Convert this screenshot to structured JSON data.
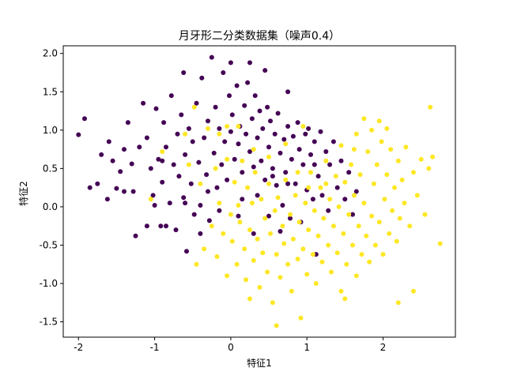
{
  "chart_data": {
    "type": "scatter",
    "title": "月牙形二分类数据集（噪声0.4）",
    "xlabel": "特征1",
    "ylabel": "特征2",
    "xlim": [
      -2.2,
      2.95
    ],
    "ylim": [
      -1.7,
      2.1
    ],
    "xticks": [
      -2,
      -1,
      0,
      1,
      2
    ],
    "yticks": [
      -1.5,
      -1.0,
      -0.5,
      0.0,
      0.5,
      1.0,
      1.5,
      2.0
    ],
    "xtick_labels": [
      "-2",
      "-1",
      "0",
      "1",
      "2"
    ],
    "ytick_labels": [
      "-1.5",
      "-1.0",
      "-0.5",
      "0.0",
      "0.5",
      "1.0",
      "1.5",
      "2.0"
    ],
    "grid": false,
    "legend": "none",
    "series": [
      {
        "class": 0,
        "color": "#440154",
        "points": [
          [
            -2.0,
            0.94
          ],
          [
            -1.92,
            1.15
          ],
          [
            -1.85,
            0.25
          ],
          [
            -1.75,
            0.3
          ],
          [
            -1.6,
            0.85
          ],
          [
            -1.55,
            0.6
          ],
          [
            -1.5,
            0.24
          ],
          [
            -1.45,
            0.46
          ],
          [
            -1.4,
            0.75
          ],
          [
            -1.35,
            1.1
          ],
          [
            -1.3,
            0.56
          ],
          [
            -1.28,
            0.2
          ],
          [
            -1.25,
            -0.38
          ],
          [
            -1.2,
            0.78
          ],
          [
            -1.15,
            1.35
          ],
          [
            -1.1,
            0.9
          ],
          [
            -1.05,
            0.5
          ],
          [
            -1.02,
            0.15
          ],
          [
            -0.98,
            1.28
          ],
          [
            -0.95,
            0.62
          ],
          [
            -0.92,
            -0.25
          ],
          [
            -0.9,
            0.32
          ],
          [
            -0.88,
            1.1
          ],
          [
            -0.85,
            0.78
          ],
          [
            -0.8,
            0.05
          ],
          [
            -0.78,
            1.45
          ],
          [
            -0.75,
            0.55
          ],
          [
            -0.72,
            -0.3
          ],
          [
            -0.7,
            0.95
          ],
          [
            -0.68,
            0.4
          ],
          [
            -0.65,
            1.2
          ],
          [
            -0.62,
            0.12
          ],
          [
            -0.6,
            0.68
          ],
          [
            -0.58,
            -0.58
          ],
          [
            -0.55,
            1.02
          ],
          [
            -0.52,
            0.3
          ],
          [
            -0.5,
            0.85
          ],
          [
            -0.48,
            -0.1
          ],
          [
            -0.45,
            1.35
          ],
          [
            -0.42,
            0.58
          ],
          [
            -0.4,
            0.02
          ],
          [
            -0.38,
            1.68
          ],
          [
            -0.35,
            0.9
          ],
          [
            -0.32,
            0.42
          ],
          [
            -0.3,
            1.12
          ],
          [
            -0.28,
            -0.18
          ],
          [
            -0.25,
            1.95
          ],
          [
            -0.22,
            0.7
          ],
          [
            -0.2,
            1.3
          ],
          [
            -0.18,
            0.25
          ],
          [
            -0.15,
            1.02
          ],
          [
            -0.12,
            0.55
          ],
          [
            -0.1,
            1.75
          ],
          [
            -0.08,
            0.85
          ],
          [
            -0.05,
            0.35
          ],
          [
            -0.02,
            1.45
          ],
          [
            0.0,
            0.98
          ],
          [
            0.02,
            1.2
          ],
          [
            0.05,
            0.62
          ],
          [
            0.08,
            1.58
          ],
          [
            0.1,
            0.82
          ],
          [
            0.12,
            1.05
          ],
          [
            0.15,
            0.45
          ],
          [
            0.18,
            1.32
          ],
          [
            0.2,
            0.95
          ],
          [
            0.22,
            1.62
          ],
          [
            0.25,
            0.72
          ],
          [
            0.28,
            1.15
          ],
          [
            0.3,
            0.52
          ],
          [
            0.32,
            1.45
          ],
          [
            0.35,
            0.9
          ],
          [
            0.38,
            1.25
          ],
          [
            0.4,
            0.6
          ],
          [
            0.42,
            1.02
          ],
          [
            0.45,
            0.35
          ],
          [
            0.48,
            1.3
          ],
          [
            0.5,
            0.78
          ],
          [
            0.52,
            1.12
          ],
          [
            0.55,
            0.5
          ],
          [
            0.58,
            0.95
          ],
          [
            0.6,
            0.28
          ],
          [
            0.62,
            1.22
          ],
          [
            0.65,
            0.7
          ],
          [
            0.68,
            0.02
          ],
          [
            0.7,
            0.88
          ],
          [
            0.72,
            0.45
          ],
          [
            0.75,
            1.05
          ],
          [
            0.78,
            -0.15
          ],
          [
            0.8,
            0.62
          ],
          [
            0.82,
            0.92
          ],
          [
            0.85,
            0.3
          ],
          [
            0.88,
            1.1
          ],
          [
            0.9,
            0.75
          ],
          [
            0.92,
            -0.2
          ],
          [
            0.95,
            0.55
          ],
          [
            0.98,
            0.95
          ],
          [
            1.0,
            0.22
          ],
          [
            1.02,
            1.02
          ],
          [
            1.05,
            0.68
          ],
          [
            1.08,
            0.1
          ],
          [
            1.1,
            0.85
          ],
          [
            1.12,
            -0.62
          ],
          [
            1.15,
            0.4
          ],
          [
            1.18,
            0.98
          ],
          [
            1.2,
            0.15
          ],
          [
            1.25,
            0.72
          ],
          [
            1.28,
            -0.05
          ],
          [
            1.3,
            0.55
          ],
          [
            1.35,
            0.85
          ],
          [
            1.4,
            0.25
          ],
          [
            1.45,
            0.6
          ],
          [
            1.5,
            0.1
          ],
          [
            1.55,
            0.45
          ],
          [
            1.6,
            -0.1
          ],
          [
            1.65,
            0.2
          ],
          [
            -1.0,
            0.02
          ],
          [
            -0.85,
            -0.25
          ],
          [
            -0.6,
            0.05
          ],
          [
            -0.4,
            -0.35
          ],
          [
            0.3,
            -0.35
          ],
          [
            0.5,
            -0.12
          ],
          [
            0.35,
            0.15
          ],
          [
            0.55,
            0.4
          ],
          [
            0.15,
            0.1
          ],
          [
            0.65,
            -0.32
          ],
          [
            -1.7,
            0.68
          ],
          [
            -1.4,
            0.2
          ],
          [
            -1.62,
            0.1
          ],
          [
            -1.1,
            -0.25
          ],
          [
            0.0,
            1.88
          ],
          [
            -0.62,
            1.75
          ],
          [
            0.45,
            1.78
          ],
          [
            0.25,
            1.88
          ],
          [
            0.75,
            1.5
          ],
          [
            1.1,
            0.55
          ],
          [
            -0.3,
            0.2
          ],
          [
            -0.15,
            -0.05
          ],
          [
            0.1,
            -0.12
          ],
          [
            0.75,
            0.3
          ],
          [
            -0.9,
            0.6
          ]
        ]
      },
      {
        "class": 1,
        "color": "#fde725",
        "points": [
          [
            -1.05,
            0.1
          ],
          [
            -0.9,
            0.72
          ],
          [
            -0.55,
            0.55
          ],
          [
            -0.45,
            -0.75
          ],
          [
            -0.4,
            0.3
          ],
          [
            -0.3,
            1.02
          ],
          [
            -0.25,
            -0.25
          ],
          [
            -0.2,
            0.5
          ],
          [
            -0.18,
            -0.65
          ],
          [
            -0.15,
            0.05
          ],
          [
            -0.1,
            -0.35
          ],
          [
            -0.05,
            0.62
          ],
          [
            0.0,
            -0.1
          ],
          [
            0.02,
            -0.45
          ],
          [
            0.05,
            0.32
          ],
          [
            0.08,
            -0.75
          ],
          [
            0.1,
            0.02
          ],
          [
            0.12,
            -0.2
          ],
          [
            0.15,
            0.6
          ],
          [
            0.18,
            -0.55
          ],
          [
            0.2,
            -0.95
          ],
          [
            0.22,
            0.25
          ],
          [
            0.25,
            -0.3
          ],
          [
            0.28,
            0.05
          ],
          [
            0.3,
            -0.7
          ],
          [
            0.32,
            0.45
          ],
          [
            0.35,
            -0.42
          ],
          [
            0.38,
            -1.05
          ],
          [
            0.4,
            0.1
          ],
          [
            0.42,
            -0.6
          ],
          [
            0.45,
            -0.15
          ],
          [
            0.48,
            -0.85
          ],
          [
            0.5,
            0.3
          ],
          [
            0.52,
            -0.35
          ],
          [
            0.55,
            -1.25
          ],
          [
            0.58,
            -0.05
          ],
          [
            0.6,
            -0.62
          ],
          [
            0.62,
            0.12
          ],
          [
            0.65,
            -0.92
          ],
          [
            0.68,
            -0.25
          ],
          [
            0.7,
            -0.48
          ],
          [
            0.72,
            0.35
          ],
          [
            0.75,
            -0.75
          ],
          [
            0.78,
            -0.1
          ],
          [
            0.8,
            -1.1
          ],
          [
            0.82,
            -0.42
          ],
          [
            0.85,
            0.15
          ],
          [
            0.88,
            -0.68
          ],
          [
            0.9,
            -0.2
          ],
          [
            0.92,
            -1.45
          ],
          [
            0.95,
            -0.55
          ],
          [
            0.98,
            0.05
          ],
          [
            1.0,
            -0.88
          ],
          [
            1.02,
            -0.3
          ],
          [
            1.05,
            0.45
          ],
          [
            1.08,
            -0.62
          ],
          [
            1.1,
            -0.05
          ],
          [
            1.12,
            -1.0
          ],
          [
            1.15,
            -0.38
          ],
          [
            1.18,
            0.25
          ],
          [
            1.2,
            -0.72
          ],
          [
            1.22,
            -0.15
          ],
          [
            1.25,
            0.6
          ],
          [
            1.28,
            -0.5
          ],
          [
            1.3,
            0.1
          ],
          [
            1.32,
            -0.85
          ],
          [
            1.35,
            -0.25
          ],
          [
            1.38,
            0.4
          ],
          [
            1.4,
            -0.6
          ],
          [
            1.42,
            0.0
          ],
          [
            1.45,
            -1.1
          ],
          [
            1.48,
            -0.35
          ],
          [
            1.5,
            0.32
          ],
          [
            1.52,
            -0.75
          ],
          [
            1.55,
            -0.1
          ],
          [
            1.58,
            0.55
          ],
          [
            1.6,
            -0.5
          ],
          [
            1.62,
            0.15
          ],
          [
            1.65,
            -0.9
          ],
          [
            1.68,
            -0.25
          ],
          [
            1.7,
            0.42
          ],
          [
            1.72,
            -0.62
          ],
          [
            1.75,
            0.05
          ],
          [
            1.78,
            -0.38
          ],
          [
            1.8,
            0.72
          ],
          [
            1.82,
            -0.72
          ],
          [
            1.85,
            -0.12
          ],
          [
            1.88,
            0.3
          ],
          [
            1.9,
            -0.5
          ],
          [
            1.92,
            0.55
          ],
          [
            1.95,
            -0.2
          ],
          [
            1.98,
            0.85
          ],
          [
            2.0,
            -0.62
          ],
          [
            2.02,
            0.1
          ],
          [
            2.05,
            0.42
          ],
          [
            2.08,
            -0.35
          ],
          [
            2.1,
            0.75
          ],
          [
            2.12,
            -0.05
          ],
          [
            2.15,
            0.25
          ],
          [
            2.18,
            -0.45
          ],
          [
            2.2,
            0.6
          ],
          [
            2.22,
            -0.15
          ],
          [
            2.25,
            0.35
          ],
          [
            2.28,
            0.05
          ],
          [
            2.3,
            0.78
          ],
          [
            2.35,
            -0.25
          ],
          [
            2.4,
            0.45
          ],
          [
            2.45,
            0.15
          ],
          [
            2.5,
            0.62
          ],
          [
            2.55,
            -0.1
          ],
          [
            2.6,
            0.5
          ],
          [
            2.62,
            1.3
          ],
          [
            2.65,
            0.65
          ],
          [
            2.75,
            -0.48
          ],
          [
            1.85,
            1.0
          ],
          [
            1.75,
            1.15
          ],
          [
            1.65,
            0.95
          ],
          [
            1.45,
            0.8
          ],
          [
            2.2,
            -1.25
          ],
          [
            2.4,
            -1.1
          ],
          [
            0.6,
            -1.55
          ],
          [
            1.5,
            -1.2
          ],
          [
            0.25,
            -1.2
          ],
          [
            -0.05,
            -0.9
          ],
          [
            -0.35,
            -0.55
          ],
          [
            -0.6,
            0.95
          ],
          [
            -0.48,
            1.3
          ],
          [
            -0.15,
            0.95
          ],
          [
            -0.05,
            1.05
          ],
          [
            0.1,
            1.05
          ],
          [
            0.3,
            0.75
          ],
          [
            0.5,
            0.65
          ],
          [
            0.72,
            0.82
          ],
          [
            1.02,
            0.25
          ],
          [
            1.25,
            0.3
          ],
          [
            0.88,
            0.45
          ],
          [
            0.95,
            1.05
          ],
          [
            1.62,
            0.75
          ],
          [
            1.95,
            1.12
          ],
          [
            2.05,
            1.02
          ]
        ]
      }
    ]
  }
}
